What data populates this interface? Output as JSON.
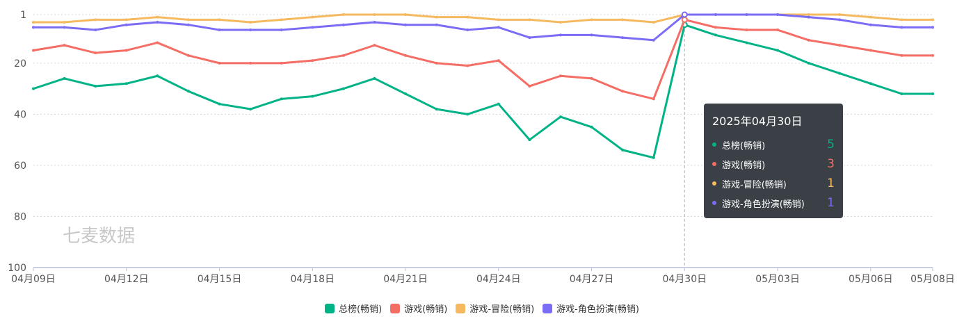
{
  "chart_data": {
    "type": "line",
    "y_axis": {
      "inverted": true,
      "ylim": [
        1,
        100
      ],
      "tick_labels": [
        "1",
        "20",
        "40",
        "60",
        "80",
        "100"
      ],
      "grid": "dotted"
    },
    "x_axis": {
      "tick_labels": [
        "04月09日",
        "04月12日",
        "04月15日",
        "04月18日",
        "04月21日",
        "04月24日",
        "04月27日",
        "04月30日",
        "05月03日",
        "05月06日",
        "05月08日"
      ]
    },
    "x": [
      "04-09",
      "04-10",
      "04-11",
      "04-12",
      "04-13",
      "04-14",
      "04-15",
      "04-16",
      "04-17",
      "04-18",
      "04-19",
      "04-20",
      "04-21",
      "04-22",
      "04-23",
      "04-24",
      "04-25",
      "04-26",
      "04-27",
      "04-28",
      "04-29",
      "04-30",
      "05-01",
      "05-02",
      "05-03",
      "05-04",
      "05-05",
      "05-06",
      "05-07",
      "05-08"
    ],
    "series": [
      {
        "name": "总榜(畅销)",
        "color": "#00b386",
        "values": [
          30,
          26,
          29,
          28,
          25,
          31,
          36,
          38,
          34,
          33,
          30,
          26,
          32,
          38,
          40,
          36,
          50,
          41,
          45,
          54,
          57,
          5,
          9,
          12,
          15,
          20,
          24,
          28,
          32,
          32
        ]
      },
      {
        "name": "游戏(畅销)",
        "color": "#f46e65",
        "values": [
          15,
          13,
          16,
          15,
          12,
          17,
          20,
          20,
          20,
          19,
          17,
          13,
          17,
          20,
          21,
          19,
          29,
          25,
          26,
          31,
          34,
          3,
          6,
          7,
          7,
          11,
          13,
          15,
          17,
          17
        ]
      },
      {
        "name": "游戏-冒险(畅销)",
        "color": "#f5b95f",
        "values": [
          4,
          4,
          3,
          3,
          2,
          3,
          3,
          4,
          3,
          2,
          1,
          1,
          1,
          2,
          2,
          3,
          3,
          4,
          3,
          3,
          4,
          1,
          1,
          1,
          1,
          1,
          1,
          2,
          3,
          3
        ]
      },
      {
        "name": "游戏-角色扮演(畅销)",
        "color": "#7b6cf6",
        "values": [
          6,
          6,
          7,
          5,
          4,
          5,
          7,
          7,
          7,
          6,
          5,
          4,
          5,
          5,
          7,
          6,
          10,
          9,
          9,
          10,
          11,
          1,
          1,
          1,
          1,
          2,
          3,
          5,
          6,
          6
        ]
      }
    ],
    "highlight_index": 21,
    "tooltip": {
      "title": "2025年04月30日",
      "values": [
        "5",
        "3",
        "1",
        "1"
      ]
    },
    "legend_position": "bottom-center",
    "watermark": "七麦数据"
  }
}
